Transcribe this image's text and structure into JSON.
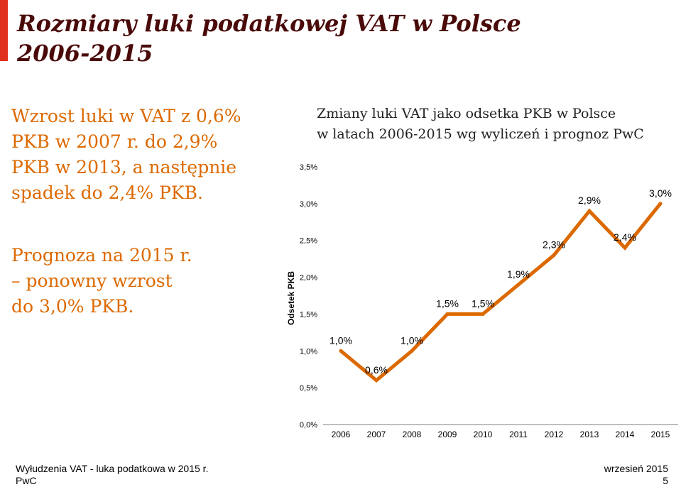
{
  "title": [
    "Rozmiary luki podatkowej VAT w Polsce",
    "2006-2015"
  ],
  "notes": [
    [
      "Wzrost luki w VAT z 0,6%",
      "PKB w 2007 r. do 2,9%",
      "PKB w 2013, a następnie",
      "spadek do 2,4% PKB."
    ],
    [
      "Prognoza na 2015 r.",
      " – ponowny wzrost",
      "do 3,0% PKB."
    ]
  ],
  "footer": {
    "left_1": "Wyłudzenia VAT - luka podatkowa w 2015 r.",
    "left_2": "PwC",
    "right_1": "wrzesień 2015",
    "right_2": "5"
  },
  "colors": {
    "accent": "#e0301e",
    "title": "#4a0a0a",
    "note": "#dc6900",
    "line": "#dc6900"
  },
  "chart_data": {
    "type": "line",
    "title": [
      "Zmiany luki VAT jako odsetka PKB w Polsce",
      "w latach 2006-2015 wg wyliczeń i prognoz  PwC"
    ],
    "xlabel": "",
    "ylabel": "Odsetek PKB",
    "categories": [
      "2006",
      "2007",
      "2008",
      "2009",
      "2010",
      "2011",
      "2012",
      "2013",
      "2014",
      "2015"
    ],
    "values": [
      1.0,
      0.6,
      1.0,
      1.5,
      1.5,
      1.9,
      2.3,
      2.9,
      2.4,
      3.0
    ],
    "data_labels": [
      "1,0%",
      "0,6%",
      "1,0%",
      "1,5%",
      "1,5%",
      "1,9%",
      "2,3%",
      "2,9%",
      "2,4%",
      "3,0%"
    ],
    "yticks": [
      "0,0%",
      "0,5%",
      "1,0%",
      "1,5%",
      "2,0%",
      "2,5%",
      "3,0%",
      "3,5%"
    ],
    "ylim": [
      0,
      3.5
    ],
    "grid": false,
    "legend": "none"
  }
}
